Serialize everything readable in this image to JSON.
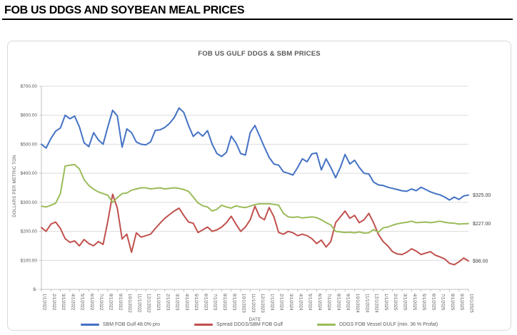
{
  "page": {
    "header_title": "FOB US DDGS AND SOYBEAN MEAL PRICES"
  },
  "chart": {
    "title": "FOB US GULF DDGS & SBM PRICES",
    "y_axis_title": "DOLLARS PER METRIC TON",
    "x_axis_title": "DATE"
  },
  "colors": {
    "sbm_line": "#4472C4",
    "spread_line": "#C0504D",
    "ddgs_line": "#9BBB59",
    "gridline": "#DCDCDC",
    "axis_line": "#BFBFBF",
    "axis_text": "#595959",
    "end_label_text": "#404040"
  },
  "chart_data": {
    "type": "line",
    "title": "FOB US GULF DDGS & SBM PRICES",
    "xlabel": "DATE",
    "ylabel": "DOLLARS PER METRIC TON",
    "ylim": [
      0,
      700
    ],
    "grid": "horizontal",
    "legend_position": "bottom",
    "y_tick_labels": [
      "$700.00",
      "$600.00",
      "$500.00",
      "$400.00",
      "$300.00",
      "$200.00",
      "$100.00",
      "$-"
    ],
    "x_tick_labels": [
      "1/1/2022",
      "2/1/2022",
      "3/1/2022",
      "4/1/2022",
      "5/1/2022",
      "6/1/2022",
      "7/1/2022",
      "8/1/2022",
      "9/1/2022",
      "10/1/2022",
      "11/1/2022",
      "12/1/2022",
      "1/1/2023",
      "2/1/2023",
      "3/1/2023",
      "4/1/2023",
      "5/1/2023",
      "6/1/2023",
      "7/1/2023",
      "8/1/2023",
      "9/1/2023",
      "10/1/2023",
      "11/1/2023",
      "12/1/2023",
      "1/1/2024",
      "2/1/2024",
      "3/1/2024",
      "4/1/2024",
      "5/1/2024",
      "6/1/2024",
      "7/1/2024",
      "8/1/2024",
      "9/1/2024",
      "10/1/2024",
      "11/1/2024",
      "12/1/2024",
      "1/1/2025",
      "2/1/2025",
      "3/1/2025",
      "4/1/2025",
      "5/1/2025",
      "6/1/2025",
      "7/1/2025",
      "8/1/2025",
      "9/1/2025",
      "10/1/2025"
    ],
    "points_per_month": 2,
    "series": [
      {
        "name": "SBM FOB Gulf 48.0% pro",
        "color": "#4472C4",
        "end_label": "$325.00",
        "values": [
          500,
          487,
          520,
          545,
          556,
          600,
          588,
          597,
          560,
          505,
          492,
          540,
          515,
          500,
          560,
          617,
          598,
          490,
          553,
          540,
          508,
          500,
          498,
          508,
          548,
          550,
          558,
          572,
          592,
          625,
          610,
          565,
          527,
          542,
          528,
          547,
          500,
          468,
          458,
          472,
          528,
          505,
          468,
          463,
          540,
          565,
          528,
          490,
          455,
          432,
          428,
          405,
          400,
          394,
          420,
          450,
          440,
          467,
          470,
          412,
          450,
          420,
          385,
          420,
          465,
          432,
          445,
          420,
          400,
          398,
          370,
          360,
          358,
          352,
          348,
          344,
          340,
          338,
          346,
          340,
          352,
          344,
          336,
          330,
          326,
          318,
          308,
          318,
          310,
          322,
          325
        ]
      },
      {
        "name": "Spread DDGS/SBM FOB Gulf",
        "color": "#C0504D",
        "end_label": "$98.00",
        "values": [
          213,
          200,
          225,
          232,
          210,
          175,
          162,
          167,
          150,
          172,
          158,
          150,
          165,
          155,
          235,
          328,
          280,
          174,
          190,
          128,
          195,
          180,
          185,
          190,
          210,
          228,
          245,
          258,
          270,
          280,
          255,
          232,
          228,
          196,
          205,
          215,
          200,
          205,
          215,
          230,
          252,
          225,
          200,
          215,
          240,
          287,
          250,
          240,
          282,
          250,
          196,
          190,
          200,
          195,
          185,
          190,
          185,
          175,
          158,
          170,
          146,
          165,
          230,
          250,
          270,
          245,
          255,
          230,
          240,
          262,
          230,
          190,
          165,
          150,
          130,
          122,
          120,
          128,
          140,
          132,
          120,
          125,
          130,
          118,
          112,
          105,
          90,
          85,
          95,
          108,
          98
        ]
      },
      {
        "name": "DDGS FOB Vessel GULF  (min. 36 % Profat)",
        "color": "#9BBB59",
        "end_label": "$227.00",
        "values": [
          287,
          284,
          290,
          297,
          330,
          425,
          428,
          430,
          415,
          378,
          358,
          345,
          336,
          330,
          324,
          300,
          316,
          330,
          332,
          342,
          346,
          350,
          350,
          346,
          348,
          350,
          346,
          348,
          350,
          348,
          344,
          338,
          318,
          298,
          288,
          284,
          270,
          276,
          290,
          284,
          280,
          288,
          284,
          282,
          287,
          292,
          295,
          295,
          295,
          293,
          290,
          262,
          250,
          248,
          250,
          246,
          248,
          250,
          247,
          240,
          230,
          222,
          200,
          198,
          196,
          197,
          195,
          198,
          194,
          195,
          206,
          197,
          212,
          215,
          221,
          226,
          229,
          231,
          235,
          230,
          231,
          232,
          230,
          232,
          235,
          231,
          229,
          228,
          225,
          226,
          227
        ]
      }
    ]
  }
}
